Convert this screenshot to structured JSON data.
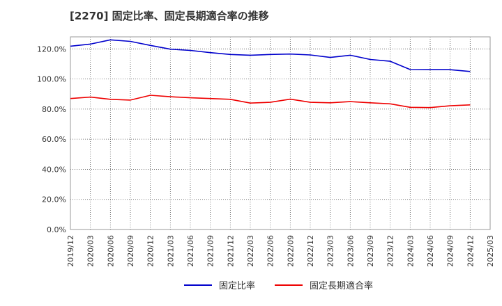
{
  "chart_data": {
    "type": "line",
    "title": "[2270]  固定比率、固定長期適合率の推移",
    "categories": [
      "2019/12",
      "2020/03",
      "2020/06",
      "2020/09",
      "2020/12",
      "2021/03",
      "2021/06",
      "2021/09",
      "2021/12",
      "2022/03",
      "2022/06",
      "2022/09",
      "2022/12",
      "2023/03",
      "2023/06",
      "2023/09",
      "2023/12",
      "2024/03",
      "2024/06",
      "2024/09",
      "2024/12",
      "2025/03"
    ],
    "series": [
      {
        "name": "固定比率",
        "color": "#0000cc",
        "values": [
          121.8,
          123.2,
          126.0,
          125.0,
          122.3,
          119.8,
          119.0,
          117.5,
          116.3,
          115.8,
          116.3,
          116.6,
          116.0,
          114.3,
          115.8,
          113.0,
          111.8,
          106.3,
          106.2,
          106.2,
          105.0,
          null
        ]
      },
      {
        "name": "固定長期適合率",
        "color": "#ee0000",
        "values": [
          87.0,
          88.0,
          86.5,
          86.0,
          89.2,
          88.2,
          87.5,
          87.0,
          86.5,
          84.0,
          84.5,
          86.6,
          84.5,
          84.2,
          85.0,
          84.2,
          83.5,
          81.2,
          81.0,
          82.2,
          82.8,
          null
        ]
      }
    ],
    "ylim": [
      0,
      128
    ],
    "yticks": [
      0,
      20,
      40,
      60,
      80,
      100,
      120
    ],
    "ytick_labels": [
      "0.0%",
      "20.0%",
      "40.0%",
      "60.0%",
      "80.0%",
      "100.0%",
      "120.0%"
    ],
    "grid": true,
    "legend_position": "bottom-center"
  }
}
